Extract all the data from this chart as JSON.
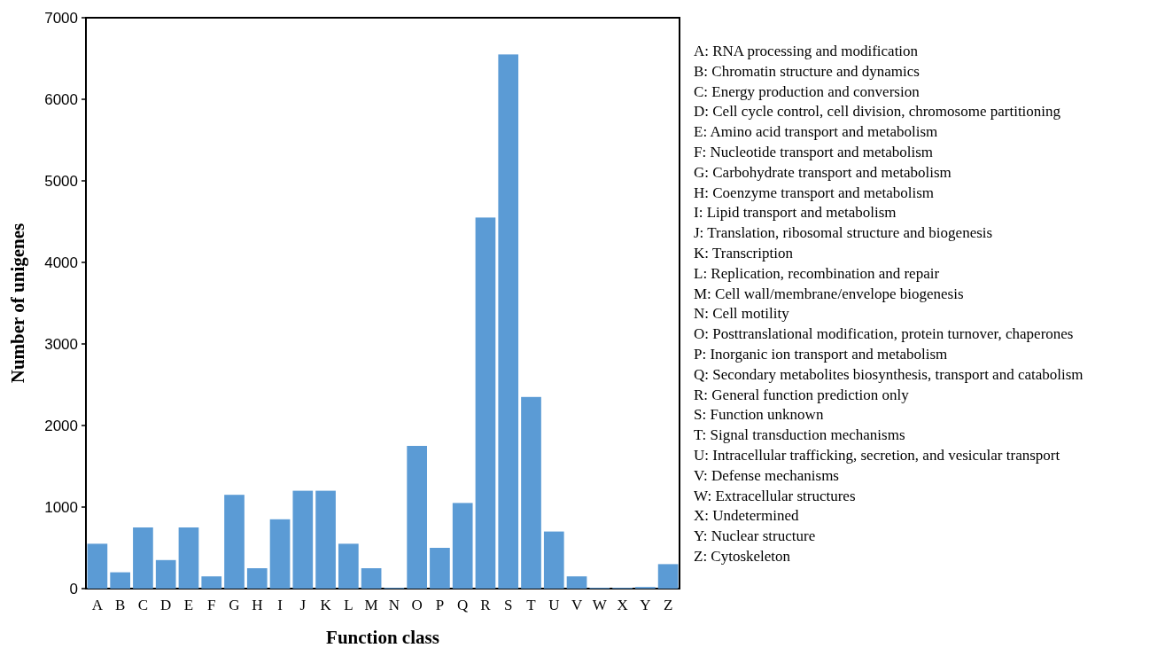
{
  "chart_data": {
    "type": "bar",
    "xlabel": "Function class",
    "ylabel": "Number of unigenes",
    "categories": [
      "A",
      "B",
      "C",
      "D",
      "E",
      "F",
      "G",
      "H",
      "I",
      "J",
      "K",
      "L",
      "M",
      "N",
      "O",
      "P",
      "Q",
      "R",
      "S",
      "T",
      "U",
      "V",
      "W",
      "X",
      "Y",
      "Z"
    ],
    "values": [
      550,
      200,
      750,
      350,
      750,
      150,
      1150,
      250,
      850,
      1200,
      1200,
      550,
      250,
      10,
      1750,
      500,
      1050,
      4550,
      6550,
      2350,
      700,
      150,
      10,
      10,
      20,
      300
    ],
    "color": "#5b9bd5",
    "ylim": [
      0,
      7000
    ],
    "yticks": [
      0,
      1000,
      2000,
      3000,
      4000,
      5000,
      6000,
      7000
    ],
    "grid": false,
    "annotations": [
      "A: RNA processing and modification",
      "B: Chromatin structure and dynamics",
      "C: Energy production and conversion",
      "D: Cell cycle control, cell division, chromosome partitioning",
      "E: Amino acid transport and metabolism",
      "F: Nucleotide transport and metabolism",
      "G: Carbohydrate transport and metabolism",
      "H: Coenzyme transport and metabolism",
      "I: Lipid transport and metabolism",
      "J: Translation, ribosomal structure and biogenesis",
      "K: Transcription",
      "L: Replication, recombination and repair",
      "M: Cell wall/membrane/envelope biogenesis",
      "N: Cell motility",
      "O: Posttranslational modification, protein turnover, chaperones",
      "P: Inorganic ion transport and metabolism",
      "Q: Secondary metabolites biosynthesis, transport and catabolism",
      "R: General function prediction only",
      "S: Function unknown",
      "T: Signal transduction mechanisms",
      "U: Intracellular trafficking, secretion, and vesicular transport",
      "V: Defense mechanisms",
      "W: Extracellular structures",
      "X: Undetermined",
      "Y: Nuclear structure",
      "Z: Cytoskeleton"
    ]
  }
}
